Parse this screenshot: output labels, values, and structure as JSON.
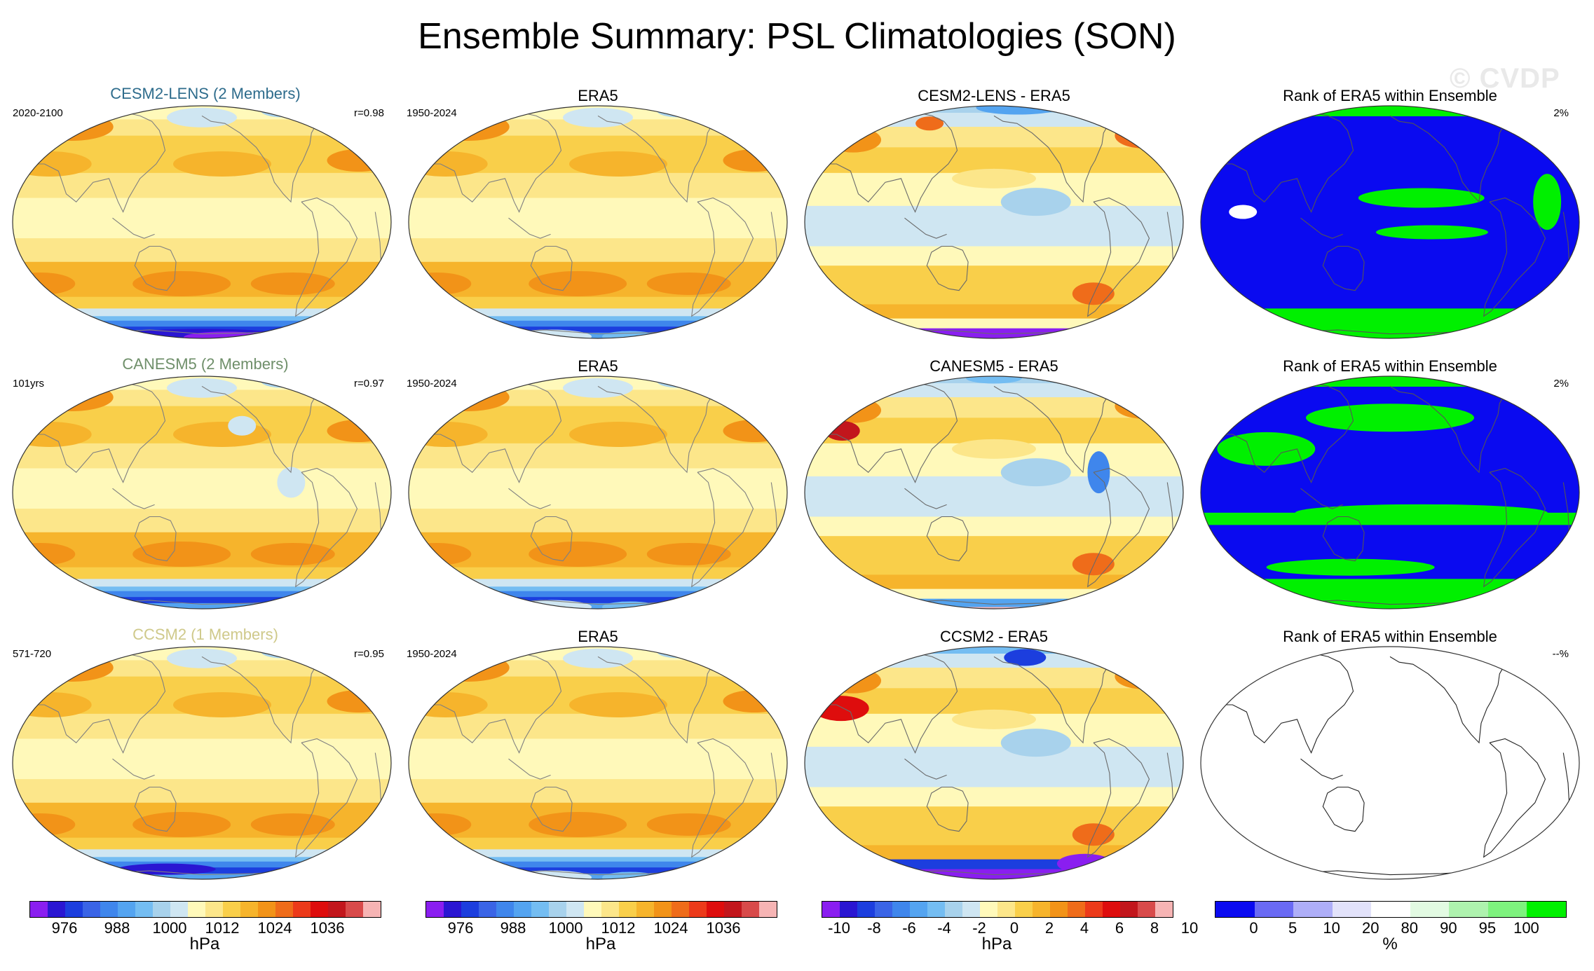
{
  "title": "Ensemble Summary: PSL Climatologies (SON)",
  "watermark": "© CVDP",
  "rows": [
    {
      "model": {
        "title": "CESM2-LENS (2 Members)",
        "title_color": "#2e6c8c",
        "years": "2020-2100",
        "corr": "r=0.98"
      },
      "obs": {
        "title": "ERA5",
        "years": "1950-2024"
      },
      "diff": {
        "title": "CESM2-LENS - ERA5"
      },
      "rank": {
        "title": "Rank of ERA5 within Ensemble",
        "pct": "2%"
      }
    },
    {
      "model": {
        "title": "CANESM5 (2 Members)",
        "title_color": "#6f8f6a",
        "years": "101yrs",
        "corr": "r=0.97"
      },
      "obs": {
        "title": "ERA5",
        "years": "1950-2024"
      },
      "diff": {
        "title": "CANESM5 - ERA5"
      },
      "rank": {
        "title": "Rank of ERA5 within Ensemble",
        "pct": "2%"
      }
    },
    {
      "model": {
        "title": "CCSM2 (1 Members)",
        "title_color": "#cfc98a",
        "years": "571-720",
        "corr": "r=0.95"
      },
      "obs": {
        "title": "ERA5",
        "years": "1950-2024"
      },
      "diff": {
        "title": "CCSM2 - ERA5"
      },
      "rank": {
        "title": "Rank of ERA5 within Ensemble",
        "pct": "--%"
      }
    }
  ],
  "colorbars": {
    "psl": {
      "colors": [
        "#8a1ef0",
        "#2a16d2",
        "#1c3ede",
        "#3a64e6",
        "#3f86ec",
        "#54a4f0",
        "#74bdf2",
        "#a8d2ec",
        "#cfe6f2",
        "#fff9ba",
        "#fce68a",
        "#f9cf4a",
        "#f6b42c",
        "#f29318",
        "#ef6c1a",
        "#ec3a1a",
        "#de0d0d",
        "#c2161c",
        "#d84a4a",
        "#f6b4b4"
      ],
      "ticks": [
        "976",
        "988",
        "1000",
        "1012",
        "1024",
        "1036"
      ],
      "unit": "hPa"
    },
    "diff": {
      "colors": [
        "#8a1ef0",
        "#2a16d2",
        "#1c3ede",
        "#3a64e6",
        "#3f86ec",
        "#54a4f0",
        "#74bdf2",
        "#a8d2ec",
        "#cfe6f2",
        "#fff9ba",
        "#fce68a",
        "#f9cf4a",
        "#f6b42c",
        "#f29318",
        "#ef6c1a",
        "#ec3a1a",
        "#de0d0d",
        "#c2161c",
        "#d84a4a",
        "#f6b4b4"
      ],
      "ticks": [
        "-10",
        "-8",
        "-6",
        "-4",
        "-2",
        "0",
        "2",
        "4",
        "6",
        "8",
        "10"
      ],
      "unit": "hPa"
    },
    "rank": {
      "colors": [
        "#0a0af0",
        "#6a6af4",
        "#aeaef8",
        "#e2e2fa",
        "#ffffff",
        "#e2fae2",
        "#aef2ae",
        "#7ef27e",
        "#00f000"
      ],
      "ticks": [
        "0",
        "5",
        "10",
        "20",
        "80",
        "90",
        "95",
        "100"
      ],
      "unit": "%"
    }
  }
}
